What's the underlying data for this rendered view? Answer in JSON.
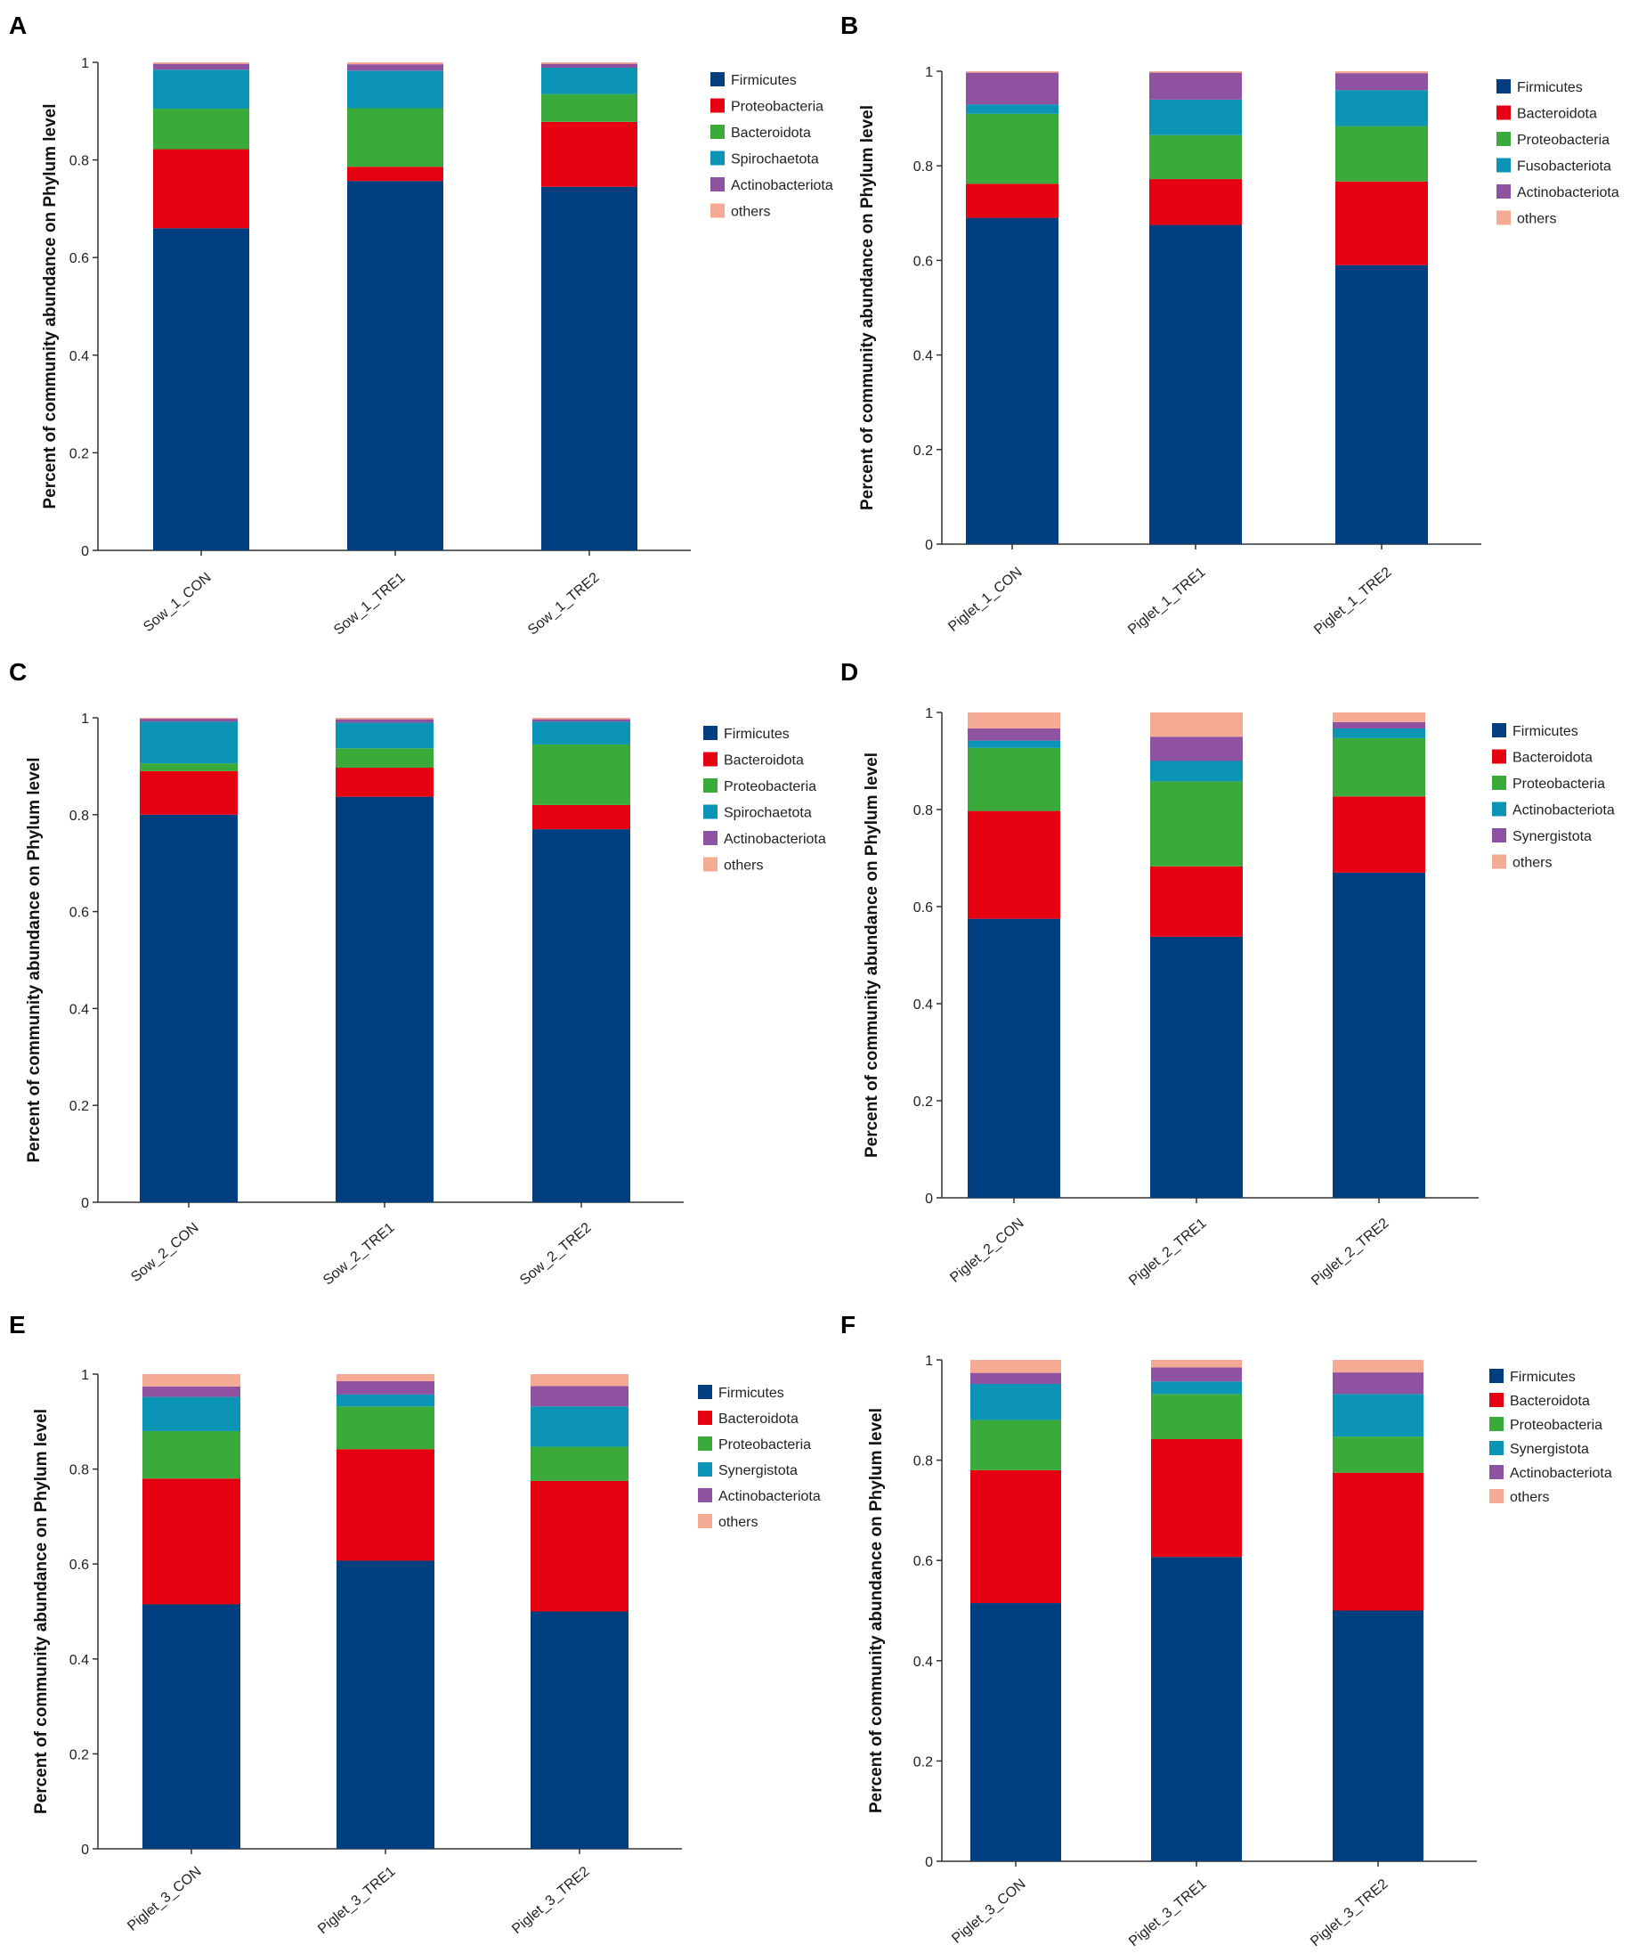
{
  "figure": {
    "ylabel": "Percent of community abundance on Phylum level"
  },
  "colors": {
    "Firmicutes": "#003f7f",
    "Proteobacteria_red": "#e50012",
    "green": "#3aab3a",
    "teal": "#0b94b5",
    "purple": "#8e52a1",
    "others": "#f4aa93"
  },
  "chart_data": [
    {
      "panel": "A",
      "type": "bar",
      "stacked": true,
      "ylabel": "Percent of community abundance on Phylum level",
      "ylim": [
        0,
        1
      ],
      "yticks": [
        "0",
        "0.2",
        "0.4",
        "0.6",
        "0.8",
        "1"
      ],
      "categories": [
        "Sow_1_CON",
        "Sow_1_TRE1",
        "Sow_1_TRE2"
      ],
      "series": [
        {
          "name": "Firmicutes",
          "color": "#003f7f",
          "values": [
            0.66,
            0.757,
            0.745
          ]
        },
        {
          "name": "Proteobacteria",
          "color": "#e50012",
          "values": [
            0.162,
            0.029,
            0.133
          ]
        },
        {
          "name": "Bacteroidota",
          "color": "#3aab3a",
          "values": [
            0.083,
            0.12,
            0.057
          ]
        },
        {
          "name": "Spirochaetota",
          "color": "#0b94b5",
          "values": [
            0.08,
            0.077,
            0.054
          ]
        },
        {
          "name": "Actinobacteriota",
          "color": "#8e52a1",
          "values": [
            0.012,
            0.013,
            0.008
          ]
        },
        {
          "name": "others",
          "color": "#f4aa93",
          "values": [
            0.003,
            0.004,
            0.003
          ]
        }
      ]
    },
    {
      "panel": "B",
      "type": "bar",
      "stacked": true,
      "ylabel": "Percent of community abundance on Phylum level",
      "ylim": [
        0,
        1
      ],
      "yticks": [
        "0",
        "0.2",
        "0.4",
        "0.6",
        "0.8",
        "1"
      ],
      "categories": [
        "Piglet_1_CON",
        "Piglet_1_TRE1",
        "Piglet_1_TRE2"
      ],
      "series": [
        {
          "name": "Firmicutes",
          "color": "#003f7f",
          "values": [
            0.69,
            0.675,
            0.59
          ]
        },
        {
          "name": "Bacteroidota",
          "color": "#e50012",
          "values": [
            0.072,
            0.097,
            0.177
          ]
        },
        {
          "name": "Proteobacteria",
          "color": "#3aab3a",
          "values": [
            0.148,
            0.093,
            0.117
          ]
        },
        {
          "name": "Fusobacteriota",
          "color": "#0b94b5",
          "values": [
            0.02,
            0.075,
            0.076
          ]
        },
        {
          "name": "Actinobacteriota",
          "color": "#8e52a1",
          "values": [
            0.067,
            0.057,
            0.036
          ]
        },
        {
          "name": "others",
          "color": "#f4aa93",
          "values": [
            0.003,
            0.003,
            0.004
          ]
        }
      ]
    },
    {
      "panel": "C",
      "type": "bar",
      "stacked": true,
      "ylabel": "Percent of community abundance on Phylum level",
      "ylim": [
        0,
        1
      ],
      "yticks": [
        "0",
        "0.2",
        "0.4",
        "0.6",
        "0.8",
        "1"
      ],
      "categories": [
        "Sow_2_CON",
        "Sow_2_TRE1",
        "Sow_2_TRE2"
      ],
      "series": [
        {
          "name": "Firmicutes",
          "color": "#003f7f",
          "values": [
            0.8,
            0.837,
            0.77
          ]
        },
        {
          "name": "Bacteroidota",
          "color": "#e50012",
          "values": [
            0.09,
            0.06,
            0.05
          ]
        },
        {
          "name": "Proteobacteria",
          "color": "#3aab3a",
          "values": [
            0.016,
            0.04,
            0.125
          ]
        },
        {
          "name": "Spirochaetota",
          "color": "#0b94b5",
          "values": [
            0.086,
            0.053,
            0.047
          ]
        },
        {
          "name": "Actinobacteriota",
          "color": "#8e52a1",
          "values": [
            0.006,
            0.007,
            0.005
          ]
        },
        {
          "name": "others",
          "color": "#f4aa93",
          "values": [
            0.002,
            0.003,
            0.003
          ]
        }
      ]
    },
    {
      "panel": "D",
      "type": "bar",
      "stacked": true,
      "ylabel": "Percent of community abundance on Phylum level",
      "ylim": [
        0,
        1
      ],
      "yticks": [
        "0",
        "0.2",
        "0.4",
        "0.6",
        "0.8",
        "1"
      ],
      "categories": [
        "Piglet_2_CON",
        "Piglet_2_TRE1",
        "Piglet_2_TRE2"
      ],
      "series": [
        {
          "name": "Firmicutes",
          "color": "#003f7f",
          "values": [
            0.575,
            0.538,
            0.67
          ]
        },
        {
          "name": "Bacteroidota",
          "color": "#e50012",
          "values": [
            0.222,
            0.145,
            0.157
          ]
        },
        {
          "name": "Proteobacteria",
          "color": "#3aab3a",
          "values": [
            0.13,
            0.175,
            0.12
          ]
        },
        {
          "name": "Actinobacteriota",
          "color": "#0b94b5",
          "values": [
            0.015,
            0.042,
            0.02
          ]
        },
        {
          "name": "Synergistota",
          "color": "#8e52a1",
          "values": [
            0.025,
            0.05,
            0.013
          ]
        },
        {
          "name": "others",
          "color": "#f4aa93",
          "values": [
            0.033,
            0.05,
            0.02
          ]
        }
      ]
    },
    {
      "panel": "E",
      "type": "bar",
      "stacked": true,
      "ylabel": "Percent of community abundance on Phylum level",
      "ylim": [
        0,
        1
      ],
      "yticks": [
        "0",
        "0.2",
        "0.4",
        "0.6",
        "0.8",
        "1"
      ],
      "categories": [
        "Piglet_3_CON",
        "Piglet_3_TRE1",
        "Piglet_3_TRE2"
      ],
      "series": [
        {
          "name": "Firmicutes",
          "color": "#003f7f",
          "values": [
            0.515,
            0.607,
            0.5
          ]
        },
        {
          "name": "Bacteroidota",
          "color": "#e50012",
          "values": [
            0.265,
            0.235,
            0.275
          ]
        },
        {
          "name": "Proteobacteria",
          "color": "#3aab3a",
          "values": [
            0.1,
            0.09,
            0.072
          ]
        },
        {
          "name": "Synergistota",
          "color": "#0b94b5",
          "values": [
            0.072,
            0.025,
            0.085
          ]
        },
        {
          "name": "Actinobacteriota",
          "color": "#8e52a1",
          "values": [
            0.022,
            0.028,
            0.043
          ]
        },
        {
          "name": "others",
          "color": "#f4aa93",
          "values": [
            0.026,
            0.015,
            0.025
          ]
        }
      ]
    },
    {
      "panel": "F",
      "type": "bar",
      "stacked": true,
      "ylabel": "Percent of community abundance on Phylum level",
      "ylim": [
        0,
        1
      ],
      "yticks": [
        "0",
        "0.2",
        "0.4",
        "0.6",
        "0.8",
        "1"
      ],
      "categories": [
        "Piglet_3_CON",
        "Piglet_3_TRE1",
        "Piglet_3_TRE2"
      ],
      "series": [
        {
          "name": "Firmicutes",
          "color": "#003f7f",
          "values": [
            0.515,
            0.607,
            0.5
          ]
        },
        {
          "name": "Bacteroidota",
          "color": "#e50012",
          "values": [
            0.265,
            0.235,
            0.275
          ]
        },
        {
          "name": "Proteobacteria",
          "color": "#3aab3a",
          "values": [
            0.1,
            0.09,
            0.072
          ]
        },
        {
          "name": "Synergistota",
          "color": "#0b94b5",
          "values": [
            0.072,
            0.025,
            0.085
          ]
        },
        {
          "name": "Actinobacteriota",
          "color": "#8e52a1",
          "values": [
            0.022,
            0.028,
            0.043
          ]
        },
        {
          "name": "others",
          "color": "#f4aa93",
          "values": [
            0.026,
            0.015,
            0.025
          ]
        }
      ]
    }
  ]
}
